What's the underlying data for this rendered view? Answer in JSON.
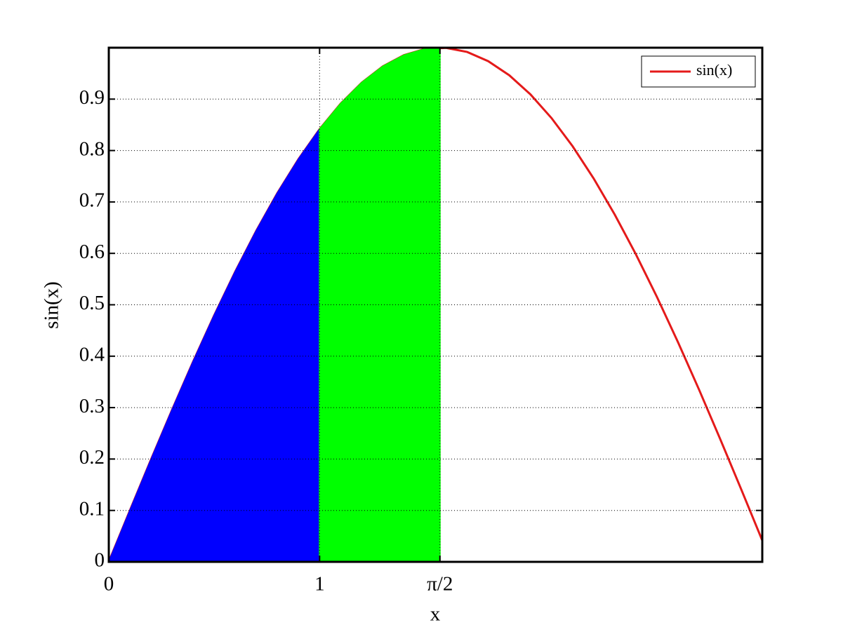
{
  "chart_data": {
    "type": "line",
    "x_label": "x",
    "y_label": "sin(x)",
    "xlim": [
      0,
      3.1
    ],
    "ylim": [
      0,
      1
    ],
    "xticks": [
      0,
      1,
      {
        "value": 1.5708,
        "label": "π/2"
      }
    ],
    "yticks": [
      0,
      0.1,
      0.2,
      0.3,
      0.4,
      0.5,
      0.6,
      0.7,
      0.8,
      0.9
    ],
    "grid": true,
    "legend": "upper right",
    "series": [
      {
        "name": "sin(x)",
        "color": "#e41a1a",
        "x": [
          0,
          0.1,
          0.2,
          0.3,
          0.4,
          0.5,
          0.6,
          0.7,
          0.8,
          0.9,
          1.0,
          1.1,
          1.2,
          1.3,
          1.4,
          1.5,
          1.6,
          1.7,
          1.8,
          1.9,
          2.0,
          2.1,
          2.2,
          2.3,
          2.4,
          2.5,
          2.6,
          2.7,
          2.8,
          2.9,
          3.0,
          3.1
        ],
        "values": [
          0,
          0.0998,
          0.1987,
          0.2955,
          0.3894,
          0.4794,
          0.5646,
          0.6442,
          0.7174,
          0.7833,
          0.8415,
          0.8912,
          0.932,
          0.9636,
          0.9854,
          0.9975,
          0.9996,
          0.9917,
          0.9738,
          0.9463,
          0.9093,
          0.8632,
          0.8085,
          0.7457,
          0.6755,
          0.5985,
          0.5155,
          0.4274,
          0.335,
          0.2392,
          0.1411,
          0.0416
        ]
      },
      {
        "type": "area",
        "color": "#0000ff",
        "x": [
          0,
          0.1,
          0.2,
          0.3,
          0.4,
          0.5,
          0.6,
          0.7,
          0.8,
          0.9,
          1.0
        ],
        "values": [
          0,
          0.0998,
          0.1987,
          0.2955,
          0.3894,
          0.4794,
          0.5646,
          0.6442,
          0.7174,
          0.7833,
          0.8415
        ]
      },
      {
        "type": "area",
        "color": "#00ff00",
        "x": [
          1.0,
          1.1,
          1.2,
          1.3,
          1.4,
          1.5,
          1.5708
        ],
        "values": [
          0.8415,
          0.8912,
          0.932,
          0.9636,
          0.9854,
          0.9975,
          1.0
        ]
      }
    ]
  }
}
